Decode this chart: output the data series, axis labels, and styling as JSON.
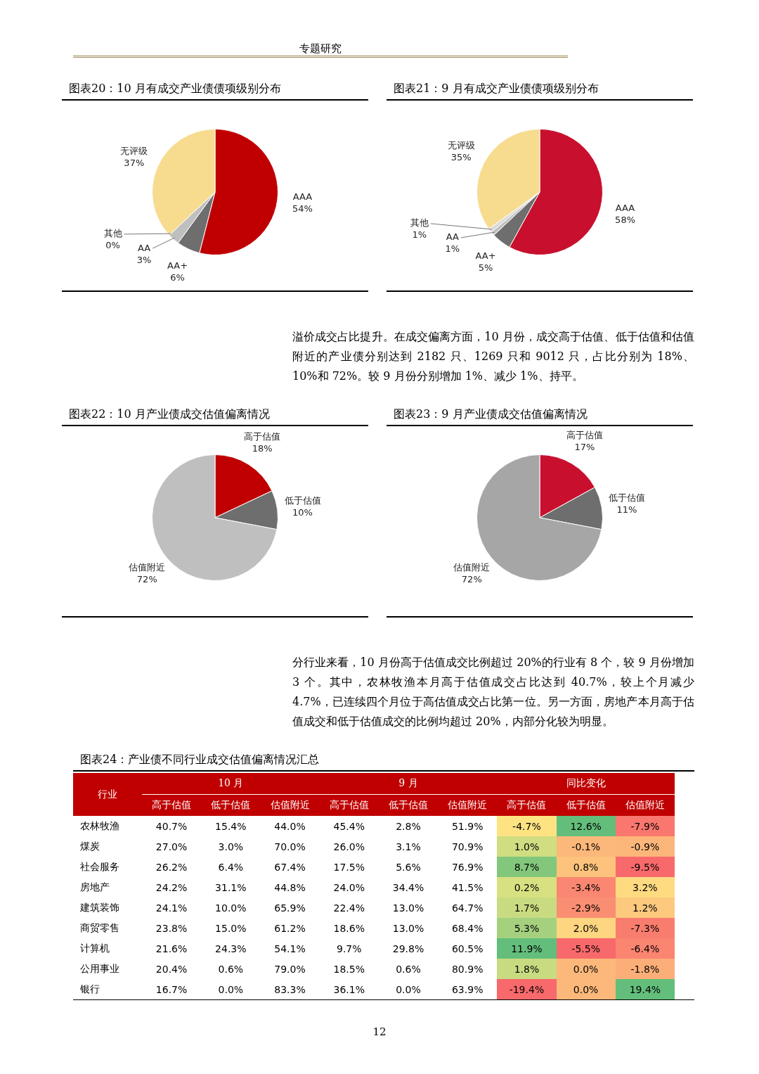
{
  "chart_data": [
    {
      "type": "pie",
      "title": "图表20：10 月有成交产业债债项级别分布",
      "annotations": [
        "专题研究"
      ],
      "categories": [
        "AAA",
        "AA+",
        "AA",
        "其他",
        "无评级"
      ],
      "values": [
        54,
        6,
        3,
        0,
        37
      ],
      "value_labels": [
        "54%",
        "6%",
        "3%",
        "0%",
        "37%"
      ],
      "colors": [
        "#c00000",
        "#6e6e6e",
        "#bfbfbf",
        "#d9d9d9",
        "#f7dc8f"
      ],
      "legend": false
    },
    {
      "type": "pie",
      "title": "图表21：9 月有成交产业债债项级别分布",
      "annotations": [
        "溢价成交占比提升。在成交偏离方面，10 月份，成交高于估值、低于估值和估值附近的产业债分别达到 2182 只、1269 只和 9012 只，占比分别为 18%、10%和 72%。较 9 月份分别增加 1%、减少 1%、持平。"
      ],
      "categories": [
        "AAA",
        "AA+",
        "AA",
        "其他",
        "无评级"
      ],
      "values": [
        58,
        5,
        1,
        1,
        35
      ],
      "value_labels": [
        "58%",
        "5%",
        "1%",
        "1%",
        "35%"
      ],
      "colors": [
        "#c8102e",
        "#6e6e6e",
        "#bfbfbf",
        "#d9d9d9",
        "#f7dc8f"
      ],
      "legend": false
    },
    {
      "type": "pie",
      "title": "图表22：10 月产业债成交估值偏离情况",
      "annotations": [
        "12"
      ],
      "categories": [
        "高于估值",
        "低于估值",
        "估值附近"
      ],
      "values": [
        18,
        10,
        72
      ],
      "value_labels": [
        "18%",
        "10%",
        "72%"
      ],
      "colors": [
        "#c00000",
        "#6e6e6e",
        "#bfbfbf"
      ],
      "legend": false
    },
    {
      "type": "pie",
      "title": "图表23：9 月产业债成交估值偏离情况",
      "annotations": [
        "分行业来看，10 月份高于估值成交比例超过 20%的行业有 8 个，较 9 月份增加 3 个。其中，农林牧渔本月高于估值成交占比达到 40.7%，较上个月减少 4.7%，已连续四个月位于高估值成交占比第一位。另一方面，房地产本月高于估值成交和低于估值成交的比例均超过 20%，内部分化较为明显。"
      ],
      "categories": [
        "高于估值",
        "低于估值",
        "估值附近"
      ],
      "values": [
        17,
        11,
        72
      ],
      "value_labels": [
        "17%",
        "11%",
        "72%"
      ],
      "colors": [
        "#c8102e",
        "#6e6e6e",
        "#a6a6a6"
      ],
      "legend": false
    },
    {
      "type": "heatmap",
      "title": "图表24：产业债不同行业成交估值偏离情况汇总",
      "ylabel": "行业",
      "annotations": [
        "10 月",
        "9 月",
        "同比变化"
      ],
      "categories": [
        "高于估值",
        "低于估值",
        "估值附近",
        "高于估值",
        "低于估值",
        "估值附近",
        "高于估值",
        "低于估值",
        "估值附近"
      ],
      "y_categories": [
        "农林牧渔",
        "煤炭",
        "社会服务",
        "房地产",
        "建筑装饰",
        "商贸零售",
        "计算机",
        "公用事业",
        "银行"
      ],
      "cells": [
        [
          40.7,
          15.4,
          44.0,
          45.4,
          2.8,
          51.9,
          -4.7,
          12.6,
          -7.9
        ],
        [
          27.0,
          3.0,
          70.0,
          26.0,
          3.1,
          70.9,
          1.0,
          -0.1,
          -0.9
        ],
        [
          26.2,
          6.4,
          67.4,
          17.5,
          5.6,
          76.9,
          8.7,
          0.8,
          -9.5
        ],
        [
          24.2,
          31.1,
          44.8,
          24.0,
          34.4,
          41.5,
          0.2,
          -3.4,
          3.2
        ],
        [
          24.1,
          10.0,
          65.9,
          22.4,
          13.0,
          64.7,
          1.7,
          -2.9,
          1.2
        ],
        [
          23.8,
          15.0,
          61.2,
          18.6,
          13.0,
          68.4,
          5.3,
          2.0,
          -7.3
        ],
        [
          21.6,
          24.3,
          54.1,
          9.7,
          29.8,
          60.5,
          11.9,
          -5.5,
          -6.4
        ],
        [
          20.4,
          0.6,
          79.0,
          18.5,
          0.6,
          80.9,
          1.8,
          0.0,
          -1.8
        ],
        [
          16.7,
          0.0,
          83.3,
          36.1,
          0.0,
          63.9,
          -19.4,
          0.0,
          19.4
        ]
      ],
      "cell_labels": [
        [
          "40.7%",
          "15.4%",
          "44.0%",
          "45.4%",
          "2.8%",
          "51.9%",
          "-4.7%",
          "12.6%",
          "-7.9%"
        ],
        [
          "27.0%",
          "3.0%",
          "70.0%",
          "26.0%",
          "3.1%",
          "70.9%",
          "1.0%",
          "-0.1%",
          "-0.9%"
        ],
        [
          "26.2%",
          "6.4%",
          "67.4%",
          "17.5%",
          "5.6%",
          "76.9%",
          "8.7%",
          "0.8%",
          "-9.5%"
        ],
        [
          "24.2%",
          "31.1%",
          "44.8%",
          "24.0%",
          "34.4%",
          "41.5%",
          "0.2%",
          "-3.4%",
          "3.2%"
        ],
        [
          "24.1%",
          "10.0%",
          "65.9%",
          "22.4%",
          "13.0%",
          "64.7%",
          "1.7%",
          "-2.9%",
          "1.2%"
        ],
        [
          "23.8%",
          "15.0%",
          "61.2%",
          "18.6%",
          "13.0%",
          "68.4%",
          "5.3%",
          "2.0%",
          "-7.3%"
        ],
        [
          "21.6%",
          "24.3%",
          "54.1%",
          "9.7%",
          "29.8%",
          "60.5%",
          "11.9%",
          "-5.5%",
          "-6.4%"
        ],
        [
          "20.4%",
          "0.6%",
          "79.0%",
          "18.5%",
          "0.6%",
          "80.9%",
          "1.8%",
          "0.0%",
          "-1.8%"
        ],
        [
          "16.7%",
          "0.0%",
          "83.3%",
          "36.1%",
          "0.0%",
          "63.9%",
          "-19.4%",
          "0.0%",
          "19.4%"
        ]
      ]
    }
  ]
}
